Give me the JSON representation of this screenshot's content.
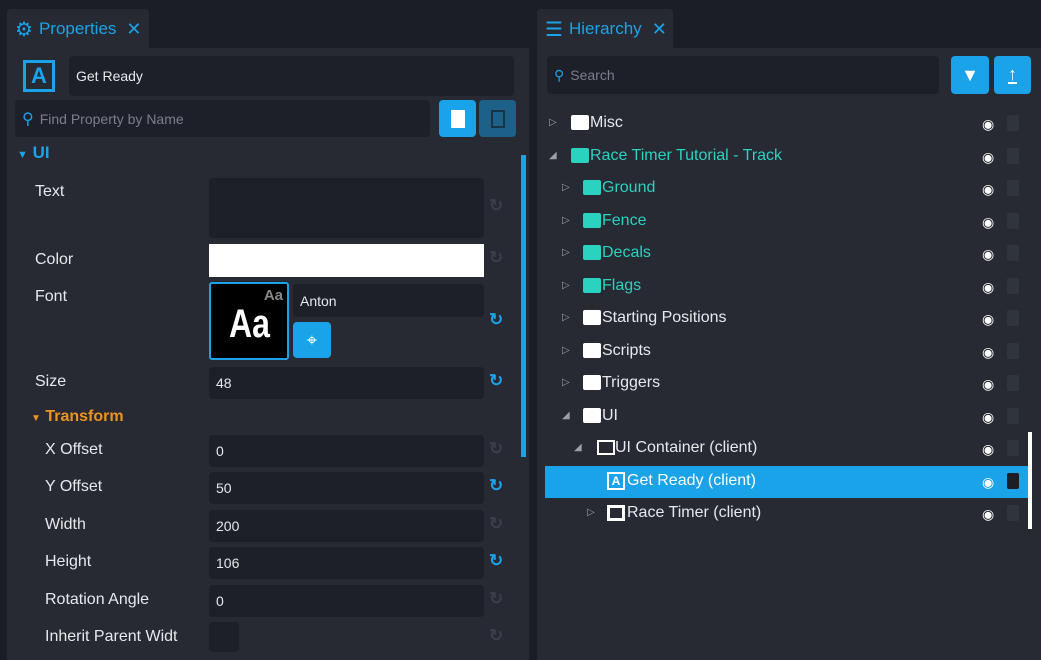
{
  "properties": {
    "tab_label": "Properties",
    "object_name": "Get Ready",
    "search_placeholder": "Find Property by Name",
    "section_ui": "UI",
    "section_transform": "Transform",
    "font_preview": "Aa",
    "font_name": "Anton",
    "color_value": "#ffffff",
    "rows": [
      {
        "label": "Text",
        "value": "",
        "modified": false
      },
      {
        "label": "Color",
        "value": "",
        "modified": false
      },
      {
        "label": "Font",
        "value": "Anton",
        "modified": true
      },
      {
        "label": "Size",
        "value": "48",
        "modified": true
      },
      {
        "label": "X Offset",
        "value": "0",
        "modified": false
      },
      {
        "label": "Y Offset",
        "value": "50",
        "modified": true
      },
      {
        "label": "Width",
        "value": "200",
        "modified": false
      },
      {
        "label": "Height",
        "value": "106",
        "modified": true
      },
      {
        "label": "Rotation Angle",
        "value": "0",
        "modified": false
      },
      {
        "label": "Inherit Parent Widt",
        "value": "",
        "modified": false
      }
    ]
  },
  "hierarchy": {
    "tab_label": "Hierarchy",
    "search_placeholder": "Search",
    "items": [
      {
        "name": "Misc",
        "level": 0,
        "expander": "collapsed",
        "icon": "folder-icon",
        "color": "#e6e8ec"
      },
      {
        "name": "Race Timer Tutorial - Track",
        "level": 0,
        "expander": "expanded",
        "icon": "folder-icon",
        "color": "#2bd2c0"
      },
      {
        "name": "Ground",
        "level": 1,
        "expander": "collapsed",
        "icon": "folder-icon",
        "color": "#2bd2c0"
      },
      {
        "name": "Fence",
        "level": 1,
        "expander": "collapsed",
        "icon": "folder-icon",
        "color": "#2bd2c0"
      },
      {
        "name": "Decals",
        "level": 1,
        "expander": "collapsed",
        "icon": "folder-icon",
        "color": "#2bd2c0"
      },
      {
        "name": "Flags",
        "level": 1,
        "expander": "collapsed",
        "icon": "folder-icon",
        "color": "#2bd2c0"
      },
      {
        "name": "Starting Positions",
        "level": 1,
        "expander": "collapsed",
        "icon": "folder-icon",
        "color": "#e6e8ec"
      },
      {
        "name": "Scripts",
        "level": 1,
        "expander": "collapsed",
        "icon": "folder-icon",
        "color": "#e6e8ec"
      },
      {
        "name": "Triggers",
        "level": 1,
        "expander": "collapsed",
        "icon": "folder-icon",
        "color": "#e6e8ec"
      },
      {
        "name": "UI",
        "level": 1,
        "expander": "expanded",
        "icon": "folder-icon",
        "color": "#e6e8ec"
      },
      {
        "name": "UI Container (client)",
        "level": 2,
        "expander": "expanded",
        "icon": "container-icon",
        "color": "#e6e8ec"
      },
      {
        "name": "Get Ready (client)",
        "level": 3,
        "expander": "none",
        "icon": "text-icon",
        "color": "#ffffff",
        "selected": true,
        "locked": true
      },
      {
        "name": "Race Timer (client)",
        "level": 3,
        "expander": "collapsed",
        "icon": "image-icon",
        "color": "#e6e8ec"
      }
    ]
  },
  "colors": {
    "accent": "#1aa3e8",
    "teal": "#2bd2c0",
    "transform": "#f0931e"
  }
}
